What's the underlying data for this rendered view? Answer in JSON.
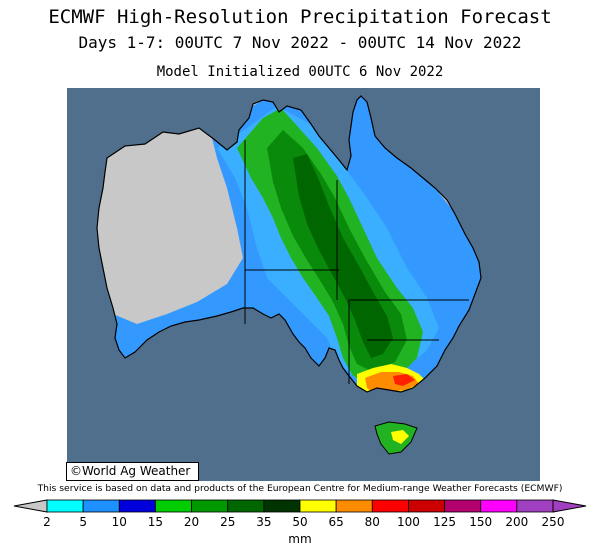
{
  "header": {
    "title": "ECMWF High-Resolution Precipitation Forecast",
    "period": "Days 1-7: 00UTC 7 Nov 2022 - 00UTC 14 Nov 2022",
    "initialized": "Model Initialized 00UTC 6 Nov 2022"
  },
  "map": {
    "region": "Australia",
    "ocean_color": "#4f6f8c",
    "land_no_rain_color": "#c8c8c8",
    "border_color": "#000000"
  },
  "credit": "©World Ag Weather",
  "service_note": "This service is based on data and products of the European Centre for Medium-range Weather Forecasts (ECMWF)",
  "legend": {
    "unit": "mm",
    "tick_labels": [
      "2",
      "5",
      "10",
      "15",
      "20",
      "25",
      "35",
      "50",
      "65",
      "80",
      "100",
      "125",
      "150",
      "200",
      "250"
    ],
    "colors": [
      "#00ffff",
      "#1e90ff",
      "#0000dc",
      "#00cc00",
      "#009900",
      "#006600",
      "#003300",
      "#ffff00",
      "#ff8c00",
      "#ff0000",
      "#cc0000",
      "#b4006e",
      "#ff00ff",
      "#a040c0"
    ],
    "under_color": "#c8c8c8",
    "over_color": "#a040c0"
  }
}
